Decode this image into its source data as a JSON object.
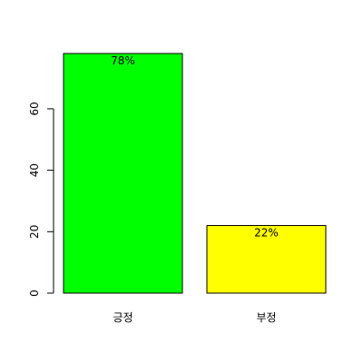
{
  "chart_data": {
    "type": "bar",
    "categories": [
      "긍정",
      "부정"
    ],
    "values": [
      78,
      22
    ],
    "data_labels": [
      "78%",
      "22%"
    ],
    "colors": [
      "#00FF00",
      "#FFFF00"
    ],
    "yticks": [
      0,
      20,
      40,
      60
    ],
    "ylim": [
      0,
      80
    ],
    "grid": false,
    "legend": "none",
    "bar_border_color": "#000000"
  }
}
